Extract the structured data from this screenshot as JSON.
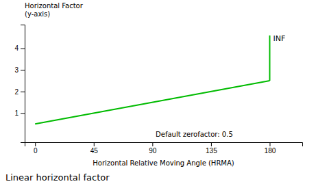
{
  "chart_data": {
    "type": "line",
    "title": "Linear horizontal factor",
    "ylabel": [
      "Horizontal Factor",
      "(y-axis)"
    ],
    "xlabel": "Horizontal Relative Moving Angle (HRMA)",
    "series": [
      {
        "x": [
          0,
          180
        ],
        "values": [
          0.5,
          2.5
        ],
        "color": "#00bb00"
      },
      {
        "x": [
          180,
          180
        ],
        "values": [
          2.5,
          4.6
        ],
        "color": "#00bb00"
      }
    ],
    "annotations": [
      "INF",
      "Default zerofactor: 0.5"
    ],
    "xlim": [
      -8,
      205
    ],
    "ylim": [
      -0.35,
      5.1
    ],
    "xticks": [
      0,
      45,
      90,
      135,
      180
    ],
    "yticks": [
      1,
      2,
      3,
      4
    ]
  }
}
